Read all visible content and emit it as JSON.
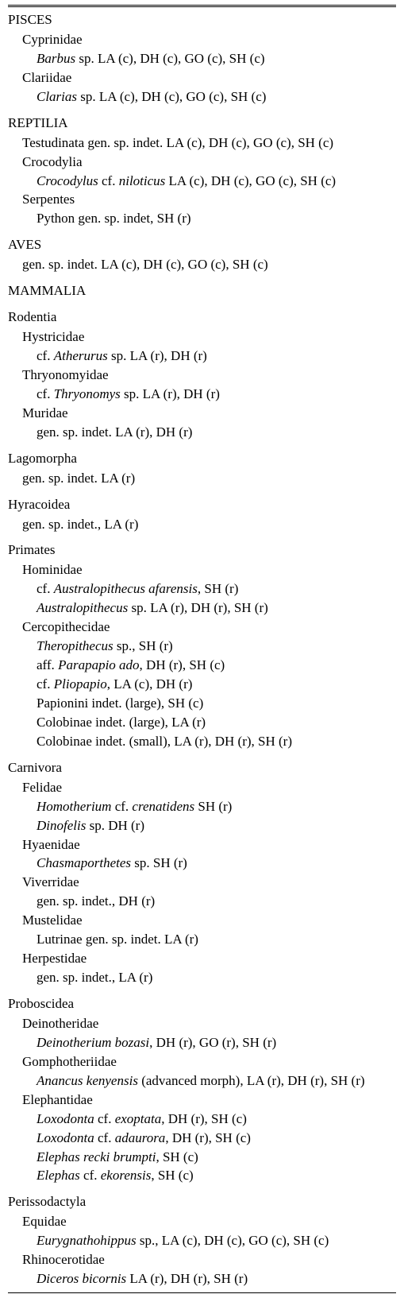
{
  "entries": [
    {
      "level": "cls",
      "parts": [
        {
          "t": "PISCES"
        }
      ]
    },
    {
      "level": "sub1",
      "parts": [
        {
          "t": "Cyprinidae"
        }
      ]
    },
    {
      "level": "sub2",
      "parts": [
        {
          "t": "Barbus",
          "i": true
        },
        {
          "t": " sp. LA (c), DH (c), GO (c), SH (c)"
        }
      ]
    },
    {
      "level": "sub1",
      "parts": [
        {
          "t": "Clariidae"
        }
      ]
    },
    {
      "level": "sub2",
      "parts": [
        {
          "t": "Clarias",
          "i": true
        },
        {
          "t": " sp. LA (c), DH (c), GO (c), SH (c)"
        }
      ]
    },
    {
      "level": "cls",
      "parts": [
        {
          "t": "REPTILIA"
        }
      ]
    },
    {
      "level": "sub1",
      "parts": [
        {
          "t": "Testudinata gen. sp. indet. LA (c), DH (c), GO (c), SH (c)"
        }
      ]
    },
    {
      "level": "sub1",
      "parts": [
        {
          "t": "Crocodylia"
        }
      ]
    },
    {
      "level": "sub2",
      "parts": [
        {
          "t": "Crocodylus",
          "i": true
        },
        {
          "t": " cf. "
        },
        {
          "t": "niloticus",
          "i": true
        },
        {
          "t": " LA (c), DH (c), GO (c), SH (c)"
        }
      ]
    },
    {
      "level": "sub1",
      "parts": [
        {
          "t": "Serpentes"
        }
      ]
    },
    {
      "level": "sub2",
      "parts": [
        {
          "t": "Python gen. sp. indet, SH (r)"
        }
      ]
    },
    {
      "level": "cls",
      "parts": [
        {
          "t": "AVES"
        }
      ]
    },
    {
      "level": "sub1",
      "parts": [
        {
          "t": "gen. sp. indet. LA (c), DH (c), GO (c), SH (c)"
        }
      ]
    },
    {
      "level": "cls",
      "parts": [
        {
          "t": "MAMMALIA"
        }
      ]
    },
    {
      "level": "order",
      "parts": [
        {
          "t": "Rodentia"
        }
      ]
    },
    {
      "level": "sub1",
      "parts": [
        {
          "t": "Hystricidae"
        }
      ]
    },
    {
      "level": "sub2",
      "parts": [
        {
          "t": "cf. "
        },
        {
          "t": "Atherurus",
          "i": true
        },
        {
          "t": " sp. LA (r), DH (r)"
        }
      ]
    },
    {
      "level": "sub1",
      "parts": [
        {
          "t": "Thryonomyidae"
        }
      ]
    },
    {
      "level": "sub2",
      "parts": [
        {
          "t": "cf. "
        },
        {
          "t": "Thryonomys",
          "i": true
        },
        {
          "t": " sp. LA (r), DH (r)"
        }
      ]
    },
    {
      "level": "sub1",
      "parts": [
        {
          "t": "Muridae"
        }
      ]
    },
    {
      "level": "sub2",
      "parts": [
        {
          "t": "gen. sp. indet. LA (r), DH (r)"
        }
      ]
    },
    {
      "level": "order",
      "parts": [
        {
          "t": "Lagomorpha"
        }
      ]
    },
    {
      "level": "sub1",
      "parts": [
        {
          "t": "gen. sp. indet. LA (r)"
        }
      ]
    },
    {
      "level": "order",
      "parts": [
        {
          "t": "Hyracoidea"
        }
      ]
    },
    {
      "level": "sub1",
      "parts": [
        {
          "t": "gen. sp. indet., LA (r)"
        }
      ]
    },
    {
      "level": "order",
      "parts": [
        {
          "t": "Primates"
        }
      ]
    },
    {
      "level": "sub1",
      "parts": [
        {
          "t": "Hominidae"
        }
      ]
    },
    {
      "level": "sub2",
      "parts": [
        {
          "t": "cf. "
        },
        {
          "t": "Australopithecus afarensis",
          "i": true
        },
        {
          "t": ", SH (r)"
        }
      ]
    },
    {
      "level": "sub2",
      "parts": [
        {
          "t": "Australopithecus",
          "i": true
        },
        {
          "t": " sp. LA (r), DH (r), SH (r)"
        }
      ]
    },
    {
      "level": "sub1",
      "parts": [
        {
          "t": "Cercopithecidae"
        }
      ]
    },
    {
      "level": "sub2",
      "parts": [
        {
          "t": "Theropithecus",
          "i": true
        },
        {
          "t": " sp., SH (r)"
        }
      ]
    },
    {
      "level": "sub2",
      "parts": [
        {
          "t": "aff. "
        },
        {
          "t": "Parapapio ado",
          "i": true
        },
        {
          "t": ", DH (r), SH (c)"
        }
      ]
    },
    {
      "level": "sub2",
      "parts": [
        {
          "t": "cf. "
        },
        {
          "t": "Pliopapio",
          "i": true
        },
        {
          "t": ", LA (c), DH (r)"
        }
      ]
    },
    {
      "level": "sub2",
      "parts": [
        {
          "t": "Papionini indet. (large), SH (c)"
        }
      ]
    },
    {
      "level": "sub2",
      "parts": [
        {
          "t": "Colobinae indet. (large), LA (r)"
        }
      ]
    },
    {
      "level": "sub2",
      "parts": [
        {
          "t": "Colobinae indet. (small), LA (r), DH (r), SH (r)"
        }
      ]
    },
    {
      "level": "order",
      "parts": [
        {
          "t": "Carnivora"
        }
      ]
    },
    {
      "level": "sub1",
      "parts": [
        {
          "t": "Felidae"
        }
      ]
    },
    {
      "level": "sub2",
      "parts": [
        {
          "t": "Homotherium",
          "i": true
        },
        {
          "t": " cf. "
        },
        {
          "t": "crenatidens",
          "i": true
        },
        {
          "t": " SH (r)"
        }
      ]
    },
    {
      "level": "sub2",
      "parts": [
        {
          "t": "Dinofelis",
          "i": true
        },
        {
          "t": " sp. DH (r)"
        }
      ]
    },
    {
      "level": "sub1",
      "parts": [
        {
          "t": "Hyaenidae"
        }
      ]
    },
    {
      "level": "sub2",
      "parts": [
        {
          "t": "Chasmaporthetes",
          "i": true
        },
        {
          "t": " sp. SH (r)"
        }
      ]
    },
    {
      "level": "sub1",
      "parts": [
        {
          "t": "Viverridae"
        }
      ]
    },
    {
      "level": "sub2",
      "parts": [
        {
          "t": "gen. sp. indet., DH (r)"
        }
      ]
    },
    {
      "level": "sub1",
      "parts": [
        {
          "t": "Mustelidae"
        }
      ]
    },
    {
      "level": "sub2",
      "parts": [
        {
          "t": "Lutrinae gen. sp. indet. LA (r)"
        }
      ]
    },
    {
      "level": "sub1",
      "parts": [
        {
          "t": "Herpestidae"
        }
      ]
    },
    {
      "level": "sub2",
      "parts": [
        {
          "t": "gen. sp. indet., LA (r)"
        }
      ]
    },
    {
      "level": "order",
      "parts": [
        {
          "t": "Proboscidea"
        }
      ]
    },
    {
      "level": "sub1",
      "parts": [
        {
          "t": "Deinotheridae"
        }
      ]
    },
    {
      "level": "sub2",
      "parts": [
        {
          "t": "Deinotherium bozasi",
          "i": true
        },
        {
          "t": ", DH (r), GO (r), SH (r)"
        }
      ]
    },
    {
      "level": "sub1",
      "parts": [
        {
          "t": "Gomphotheriidae"
        }
      ]
    },
    {
      "level": "sub2",
      "parts": [
        {
          "t": "Anancus kenyensis",
          "i": true
        },
        {
          "t": " (advanced morph), LA (r), DH (r), SH (r)"
        }
      ]
    },
    {
      "level": "sub1",
      "parts": [
        {
          "t": "Elephantidae"
        }
      ]
    },
    {
      "level": "sub2",
      "parts": [
        {
          "t": "Loxodonta",
          "i": true
        },
        {
          "t": " cf. "
        },
        {
          "t": "exoptata",
          "i": true
        },
        {
          "t": ", DH (r), SH (c)"
        }
      ]
    },
    {
      "level": "sub2",
      "parts": [
        {
          "t": "Loxodonta",
          "i": true
        },
        {
          "t": " cf. "
        },
        {
          "t": "adaurora",
          "i": true
        },
        {
          "t": ", DH (r), SH (c)"
        }
      ]
    },
    {
      "level": "sub2",
      "parts": [
        {
          "t": "Elephas recki brumpti",
          "i": true
        },
        {
          "t": ", SH (c)"
        }
      ]
    },
    {
      "level": "sub2",
      "parts": [
        {
          "t": "Elephas",
          "i": true
        },
        {
          "t": " cf. "
        },
        {
          "t": "ekorensis",
          "i": true
        },
        {
          "t": ", SH (c)"
        }
      ]
    },
    {
      "level": "order",
      "parts": [
        {
          "t": "Perissodactyla"
        }
      ]
    },
    {
      "level": "sub1",
      "parts": [
        {
          "t": "Equidae"
        }
      ]
    },
    {
      "level": "sub2",
      "parts": [
        {
          "t": "Eurygnathohippus",
          "i": true
        },
        {
          "t": " sp., LA (c), DH (c), GO (c), SH (c)"
        }
      ]
    },
    {
      "level": "sub1",
      "parts": [
        {
          "t": "Rhinocerotidae"
        }
      ]
    },
    {
      "level": "sub2",
      "parts": [
        {
          "t": "Diceros bicornis",
          "i": true
        },
        {
          "t": " LA (r), DH (r), SH (r)"
        }
      ]
    }
  ]
}
